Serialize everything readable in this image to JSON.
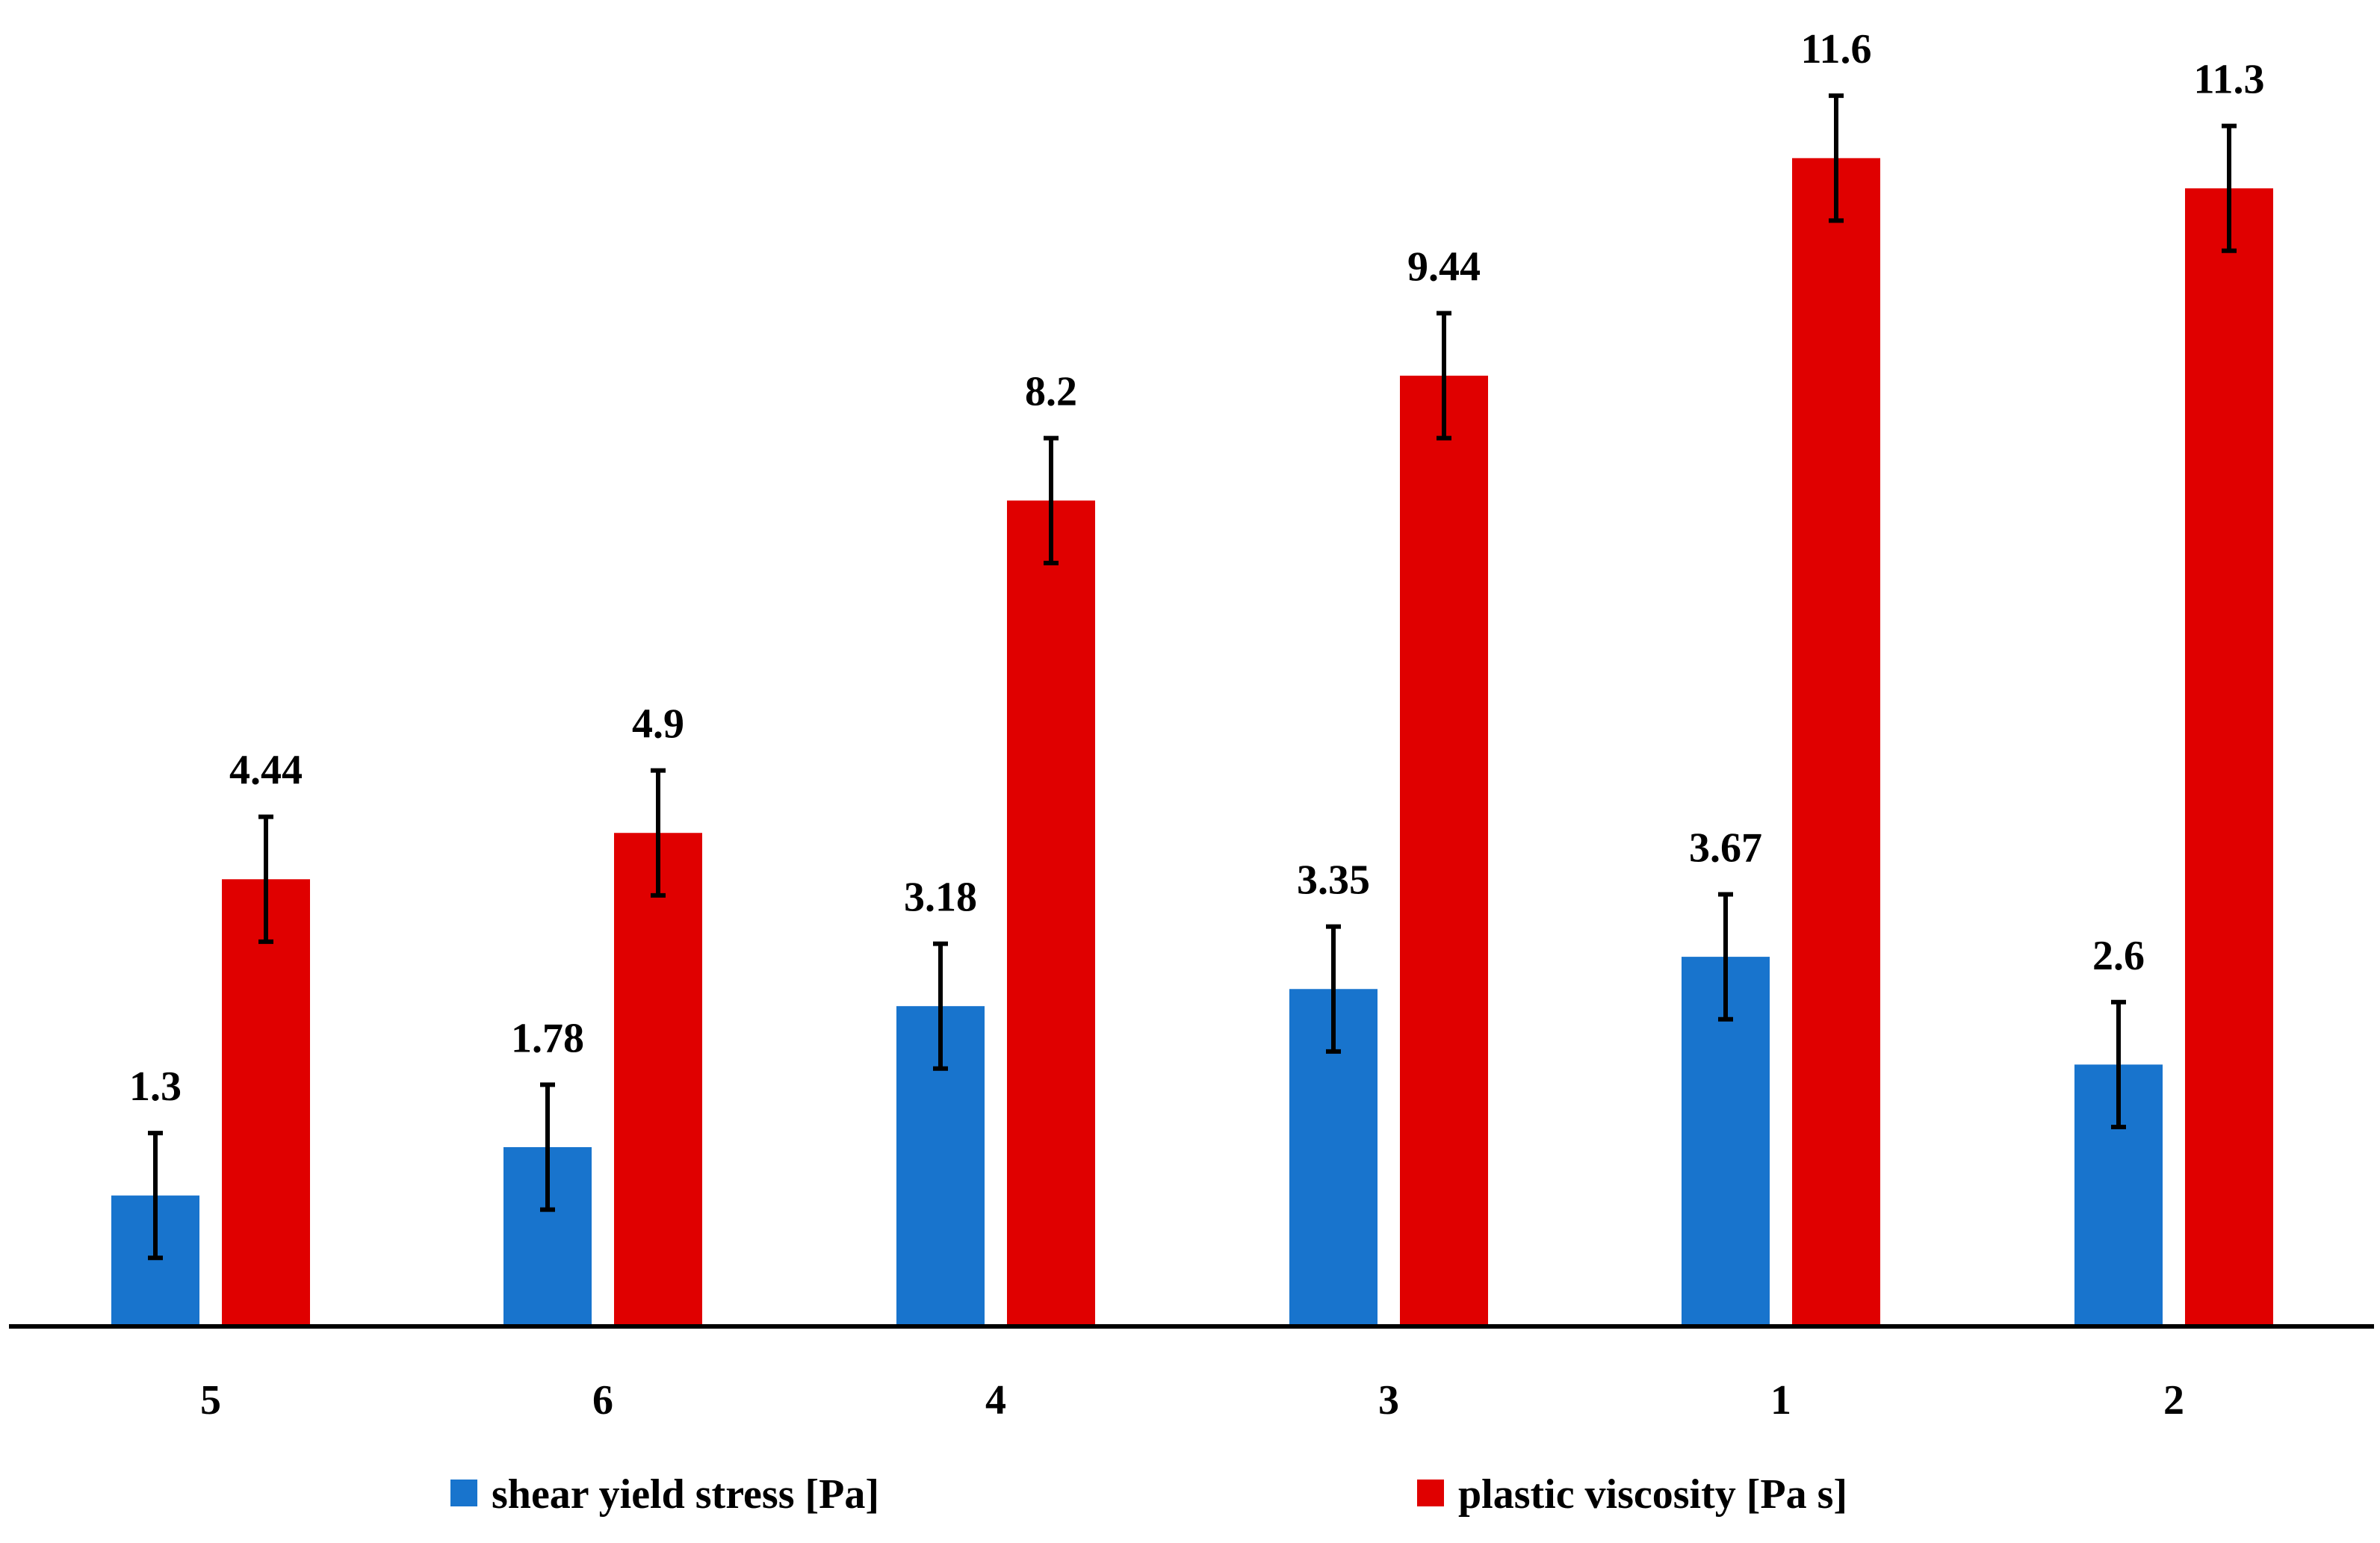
{
  "chart_data": {
    "type": "bar",
    "title": "",
    "xlabel": "",
    "ylabel": "",
    "ylim": [
      0,
      12.5
    ],
    "grid": false,
    "legend_position": "bottom",
    "categories": [
      "5",
      "6",
      "4",
      "3",
      "1",
      "2"
    ],
    "series": [
      {
        "name": "shear yield stress [Pa]",
        "color": "#1874cd",
        "values": [
          1.3,
          1.78,
          3.18,
          3.35,
          3.67,
          2.6
        ],
        "labels": [
          "1.3",
          "1.78",
          "3.18",
          "3.35",
          "3.67",
          "2.6"
        ],
        "error": [
          0.62,
          0.62,
          0.62,
          0.62,
          0.62,
          0.62
        ]
      },
      {
        "name": "plastic viscosity [Pa s]",
        "color": "#e00000",
        "values": [
          4.44,
          4.9,
          8.2,
          9.44,
          11.6,
          11.3
        ],
        "labels": [
          "4.44",
          "4.9",
          "8.2",
          "9.44",
          "11.6",
          "11.3"
        ],
        "error": [
          0.62,
          0.62,
          0.62,
          0.62,
          0.62,
          0.62
        ]
      }
    ]
  }
}
